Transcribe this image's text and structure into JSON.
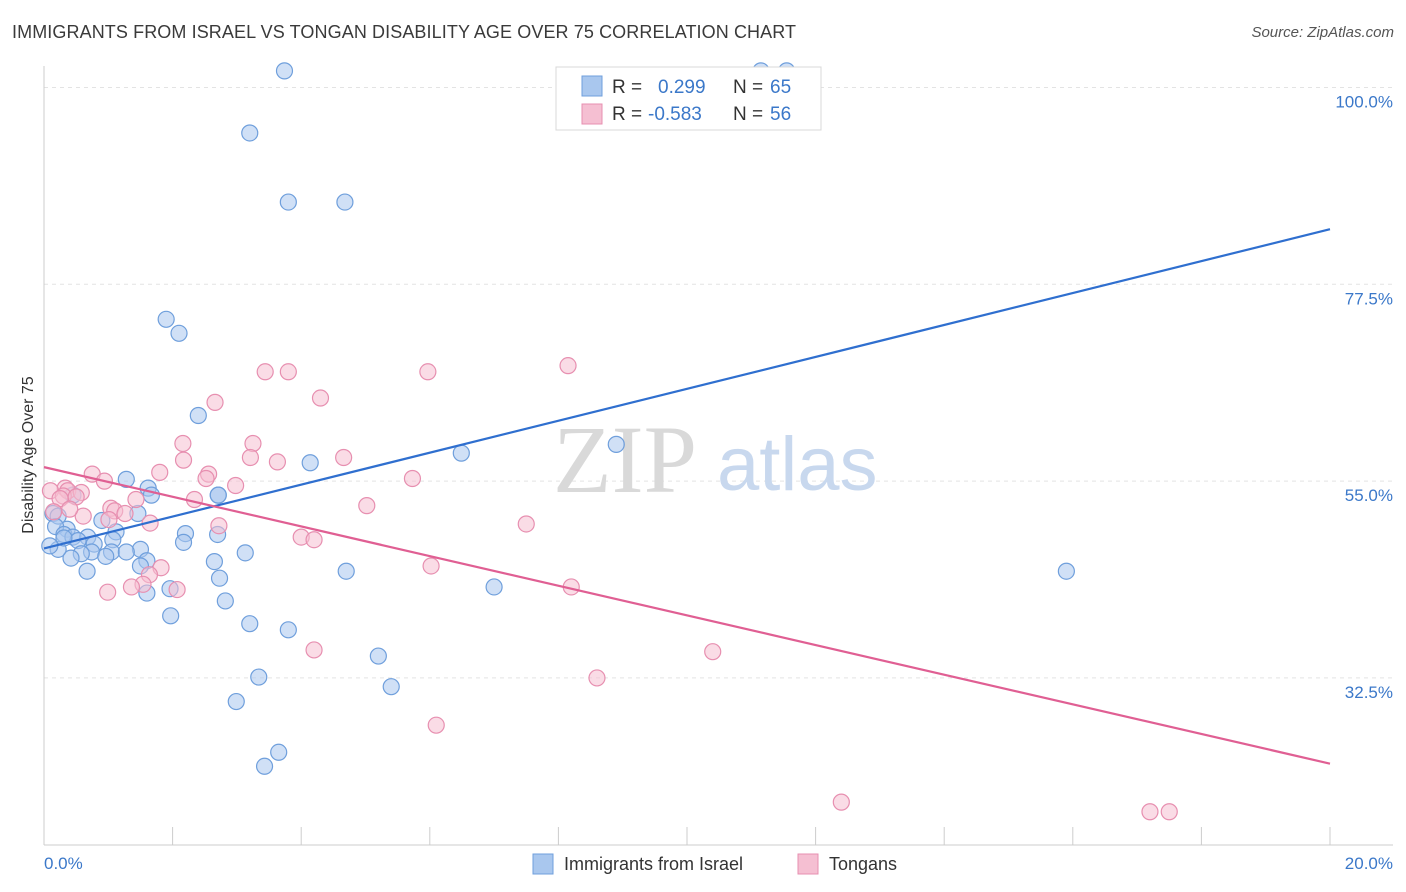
{
  "title": "IMMIGRANTS FROM ISRAEL VS TONGAN DISABILITY AGE OVER 75 CORRELATION CHART",
  "source": "Source: ZipAtlas.com",
  "watermark": {
    "zip": "ZIP",
    "atlas": "atlas"
  },
  "legend": {
    "r_label": "R =",
    "n_label": "N =",
    "rows": [
      {
        "r": "0.299",
        "n": "65"
      },
      {
        "r": "-0.583",
        "n": "56"
      }
    ]
  },
  "chart_data": {
    "type": "scatter",
    "xlabel": "",
    "ylabel": "Disability Age Over 75",
    "xlim": [
      0,
      20
    ],
    "ylim": [
      13.4,
      102
    ],
    "x_tick_labels": [
      "0.0%",
      "20.0%"
    ],
    "y_ticks": [
      32.5,
      55.0,
      77.5,
      100.0
    ],
    "y_tick_labels": [
      "32.5%",
      "55.0%",
      "77.5%",
      "100.0%"
    ],
    "grid": true,
    "series": [
      {
        "name": "Immigrants from Israel",
        "color": "#6f9fdc",
        "fill": "#a9c7ee",
        "trend": {
          "x": [
            0,
            20
          ],
          "y": [
            47.3,
            83.8
          ]
        },
        "points": [
          [
            3.74,
            101.9
          ],
          [
            11.15,
            101.9
          ],
          [
            11.55,
            101.9
          ],
          [
            3.2,
            94.8
          ],
          [
            3.8,
            86.9
          ],
          [
            4.68,
            86.9
          ],
          [
            1.9,
            73.5
          ],
          [
            2.1,
            71.9
          ],
          [
            2.4,
            62.5
          ],
          [
            6.49,
            58.2
          ],
          [
            8.9,
            59.2
          ],
          [
            4.14,
            57.1
          ],
          [
            1.28,
            55.2
          ],
          [
            1.62,
            54.2
          ],
          [
            1.67,
            53.4
          ],
          [
            2.71,
            53.4
          ],
          [
            2.71,
            53.4
          ],
          [
            1.46,
            51.3
          ],
          [
            0.14,
            51.3
          ],
          [
            0.22,
            51.0
          ],
          [
            0.9,
            50.5
          ],
          [
            0.36,
            49.5
          ],
          [
            0.18,
            49.8
          ],
          [
            0.31,
            48.9
          ],
          [
            1.12,
            49.2
          ],
          [
            2.7,
            48.9
          ],
          [
            2.2,
            49.0
          ],
          [
            0.45,
            48.6
          ],
          [
            0.68,
            48.6
          ],
          [
            1.07,
            48.3
          ],
          [
            0.53,
            48.2
          ],
          [
            0.78,
            47.8
          ],
          [
            2.17,
            48.0
          ],
          [
            1.5,
            47.2
          ],
          [
            1.05,
            46.9
          ],
          [
            0.74,
            46.9
          ],
          [
            1.28,
            46.9
          ],
          [
            0.58,
            46.7
          ],
          [
            0.96,
            46.4
          ],
          [
            3.13,
            46.8
          ],
          [
            0.42,
            46.2
          ],
          [
            1.6,
            45.9
          ],
          [
            1.5,
            45.3
          ],
          [
            2.65,
            45.8
          ],
          [
            4.7,
            44.7
          ],
          [
            0.67,
            44.7
          ],
          [
            2.73,
            43.9
          ],
          [
            1.6,
            42.2
          ],
          [
            1.96,
            42.7
          ],
          [
            7.0,
            42.9
          ],
          [
            15.9,
            44.7
          ],
          [
            2.82,
            41.3
          ],
          [
            1.97,
            39.6
          ],
          [
            3.2,
            38.7
          ],
          [
            3.8,
            38.0
          ],
          [
            5.2,
            35.0
          ],
          [
            3.34,
            32.6
          ],
          [
            5.4,
            31.5
          ],
          [
            2.99,
            29.8
          ],
          [
            3.65,
            24.0
          ],
          [
            3.43,
            22.4
          ],
          [
            0.45,
            53.4
          ],
          [
            0.22,
            47.2
          ],
          [
            0.31,
            48.5
          ],
          [
            0.09,
            47.6
          ]
        ]
      },
      {
        "name": "Tongans",
        "color": "#e78fb0",
        "fill": "#f5bfd2",
        "trend": {
          "x": [
            0,
            20
          ],
          "y": [
            56.6,
            22.7
          ]
        },
        "points": [
          [
            3.44,
            67.5
          ],
          [
            3.8,
            67.5
          ],
          [
            5.97,
            67.5
          ],
          [
            8.15,
            68.2
          ],
          [
            4.3,
            64.5
          ],
          [
            2.66,
            64.0
          ],
          [
            3.25,
            59.3
          ],
          [
            2.16,
            59.3
          ],
          [
            4.66,
            57.7
          ],
          [
            3.21,
            57.7
          ],
          [
            2.17,
            57.4
          ],
          [
            3.63,
            57.2
          ],
          [
            1.8,
            56.0
          ],
          [
            2.56,
            55.8
          ],
          [
            2.52,
            55.3
          ],
          [
            5.73,
            55.3
          ],
          [
            0.75,
            55.8
          ],
          [
            0.94,
            55.0
          ],
          [
            2.98,
            54.5
          ],
          [
            0.33,
            54.2
          ],
          [
            0.37,
            53.9
          ],
          [
            0.58,
            53.7
          ],
          [
            0.1,
            53.9
          ],
          [
            0.3,
            53.3
          ],
          [
            0.5,
            53.2
          ],
          [
            2.34,
            52.9
          ],
          [
            1.43,
            52.9
          ],
          [
            0.25,
            53.0
          ],
          [
            1.04,
            51.9
          ],
          [
            1.1,
            51.6
          ],
          [
            1.26,
            51.3
          ],
          [
            0.61,
            51.0
          ],
          [
            1.01,
            50.6
          ],
          [
            0.4,
            51.8
          ],
          [
            5.02,
            52.2
          ],
          [
            1.65,
            50.2
          ],
          [
            2.72,
            49.9
          ],
          [
            7.5,
            50.1
          ],
          [
            4.0,
            48.6
          ],
          [
            4.2,
            48.3
          ],
          [
            6.02,
            45.3
          ],
          [
            1.82,
            45.1
          ],
          [
            1.64,
            44.3
          ],
          [
            1.54,
            43.2
          ],
          [
            1.36,
            42.9
          ],
          [
            2.07,
            42.6
          ],
          [
            0.99,
            42.3
          ],
          [
            8.2,
            42.9
          ],
          [
            4.2,
            35.7
          ],
          [
            10.4,
            35.5
          ],
          [
            8.6,
            32.5
          ],
          [
            6.1,
            27.1
          ],
          [
            12.4,
            18.3
          ],
          [
            17.2,
            17.2
          ],
          [
            17.5,
            17.2
          ],
          [
            0.15,
            51.5
          ]
        ]
      }
    ]
  },
  "bottom_legend": {
    "israel": "Immigrants from Israel",
    "tongans": "Tongans"
  }
}
